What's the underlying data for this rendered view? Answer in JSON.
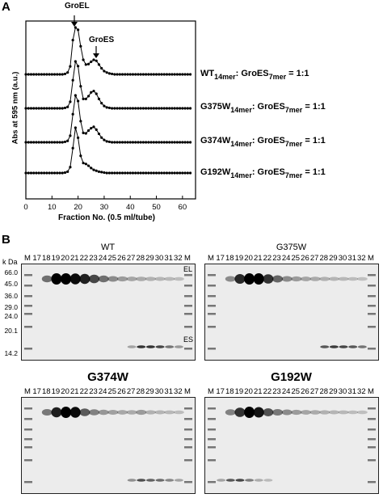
{
  "panel_a": {
    "label": "A",
    "annotations": {
      "groel": "GroEL",
      "groes": "GroES"
    },
    "traces": [
      {
        "pre": "WT",
        "sub1": "14mer",
        "mid": ": GroES",
        "sub2": "7mer",
        "ratio": "= 1:1"
      },
      {
        "pre": "G375W",
        "sub1": "14mer",
        "mid": ": GroES",
        "sub2": "7mer",
        "ratio": "= 1:1"
      },
      {
        "pre": "G374W",
        "sub1": "14mer",
        "mid": ": GroES",
        "sub2": "7mer",
        "ratio": "= 1:1"
      },
      {
        "pre": "G192W",
        "sub1": "14mer",
        "mid": ": GroES",
        "sub2": "7mer",
        "ratio": "= 1:1"
      }
    ]
  },
  "chart_data": {
    "type": "line",
    "title": "",
    "xlabel": "Fraction No. (0.5 ml/tube)",
    "ylabel": "Abs at 595 nm (a.u.)",
    "xlim": [
      0,
      65
    ],
    "xticks": [
      "0",
      "10",
      "20",
      "30",
      "40",
      "50",
      "60"
    ],
    "x": [
      0,
      1,
      2,
      3,
      4,
      5,
      6,
      7,
      8,
      9,
      10,
      11,
      12,
      13,
      14,
      15,
      16,
      17,
      18,
      19,
      20,
      21,
      22,
      23,
      24,
      25,
      26,
      27,
      28,
      29,
      30,
      31,
      32,
      33,
      34,
      35,
      36,
      37,
      38,
      39,
      40,
      41,
      42,
      43,
      44,
      45,
      46,
      47,
      48,
      49,
      50,
      51,
      52,
      53,
      54,
      55,
      56,
      57,
      58,
      59,
      60,
      61,
      62,
      63
    ],
    "series": [
      {
        "name": "WT",
        "values": [
          0,
          0,
          0,
          0,
          0,
          0,
          0,
          0,
          0,
          0,
          0,
          0,
          0,
          0,
          0,
          0.01,
          0.04,
          0.17,
          0.73,
          1,
          0.95,
          0.6,
          0.31,
          0.21,
          0.22,
          0.27,
          0.31,
          0.29,
          0.21,
          0.13,
          0.07,
          0.04,
          0.02,
          0.01,
          0,
          0,
          0,
          0,
          0,
          0,
          0,
          0,
          0,
          0,
          0,
          0,
          0,
          0,
          0,
          0,
          0,
          0,
          0,
          0,
          0,
          0,
          0,
          0,
          0,
          0,
          0,
          0,
          0,
          0
        ]
      },
      {
        "name": "G375W",
        "values": [
          0,
          0,
          0,
          0,
          0,
          0,
          0,
          0,
          0,
          0,
          0,
          0,
          0,
          0,
          0,
          0.01,
          0.03,
          0.14,
          0.6,
          1,
          0.9,
          0.47,
          0.2,
          0.2,
          0.26,
          0.34,
          0.37,
          0.31,
          0.2,
          0.11,
          0.05,
          0.02,
          0.01,
          0,
          0,
          0,
          0,
          0,
          0,
          0,
          0,
          0,
          0,
          0,
          0,
          0,
          0,
          0,
          0,
          0,
          0,
          0,
          0,
          0,
          0,
          0,
          0,
          0,
          0,
          0,
          0,
          0,
          0,
          0
        ]
      },
      {
        "name": "G374W",
        "values": [
          0,
          0,
          0,
          0,
          0,
          0,
          0,
          0,
          0,
          0,
          0,
          0,
          0,
          0,
          0,
          0.01,
          0.03,
          0.14,
          0.6,
          1,
          0.88,
          0.45,
          0.2,
          0.19,
          0.25,
          0.3,
          0.33,
          0.27,
          0.18,
          0.1,
          0.05,
          0.02,
          0.01,
          0,
          0,
          0,
          0,
          0,
          0,
          0,
          0,
          0,
          0,
          0,
          0,
          0,
          0,
          0,
          0,
          0,
          0,
          0,
          0,
          0,
          0,
          0,
          0,
          0,
          0,
          0,
          0,
          0,
          0,
          0
        ]
      },
      {
        "name": "G192W",
        "values": [
          0,
          0,
          0,
          0,
          0,
          0,
          0,
          0,
          0,
          0,
          0,
          0,
          0,
          0,
          0,
          0.01,
          0.03,
          0.13,
          0.55,
          1,
          0.78,
          0.38,
          0.22,
          0.2,
          0.16,
          0.11,
          0.07,
          0.05,
          0.03,
          0.02,
          0.01,
          0,
          0,
          0,
          0,
          0,
          0,
          0,
          0,
          0,
          0,
          0,
          0,
          0,
          0,
          0,
          0,
          0,
          0,
          0,
          0,
          0,
          0,
          0,
          0,
          0,
          0,
          0,
          0,
          0,
          0,
          0,
          0,
          0
        ]
      }
    ]
  },
  "panel_b": {
    "label": "B",
    "units": "k Da",
    "markers": [
      "66.0",
      "45.0",
      "36.0",
      "29.0",
      "24.0",
      "20.1",
      "14.2"
    ],
    "lanes": [
      "M",
      "17",
      "18",
      "19",
      "20",
      "21",
      "22",
      "23",
      "24",
      "25",
      "26",
      "27",
      "28",
      "29",
      "30",
      "31",
      "32",
      "M"
    ],
    "band_labels": {
      "el": "EL",
      "es": "ES"
    },
    "gels": [
      {
        "title": "WT",
        "el": [
          0,
          0,
          0.45,
          1,
          1,
          0.95,
          0.85,
          0.65,
          0.45,
          0.3,
          0.22,
          0.18,
          0.15,
          0.12,
          0.1,
          0.08,
          0.06,
          0
        ],
        "es": [
          0,
          0,
          0,
          0,
          0,
          0,
          0,
          0,
          0,
          0,
          0,
          0.2,
          0.8,
          0.8,
          0.7,
          0.45,
          0.25,
          0
        ]
      },
      {
        "title": "G375W",
        "el": [
          0,
          0,
          0.3,
          0.8,
          1,
          1,
          0.75,
          0.5,
          0.3,
          0.22,
          0.18,
          0.15,
          0.12,
          0.1,
          0.08,
          0.06,
          0.05,
          0
        ],
        "es": [
          0,
          0,
          0,
          0,
          0,
          0,
          0,
          0,
          0,
          0,
          0,
          0,
          0.6,
          0.75,
          0.7,
          0.6,
          0.45,
          0
        ]
      },
      {
        "title": "G374W",
        "el": [
          0,
          0,
          0.4,
          0.85,
          1,
          0.95,
          0.55,
          0.35,
          0.25,
          0.2,
          0.17,
          0.15,
          0.22,
          0.12,
          0.1,
          0.08,
          0.06,
          0
        ],
        "es": [
          0,
          0,
          0,
          0,
          0,
          0,
          0,
          0,
          0,
          0,
          0,
          0.3,
          0.65,
          0.55,
          0.5,
          0.35,
          0.2,
          0
        ]
      },
      {
        "title": "G192W",
        "el": [
          0,
          0,
          0.35,
          0.75,
          1,
          0.9,
          0.6,
          0.4,
          0.3,
          0.22,
          0.18,
          0.15,
          0.12,
          0.1,
          0.08,
          0.06,
          0.05,
          0
        ],
        "es": [
          0,
          0.2,
          0.6,
          0.7,
          0.4,
          0.15,
          0.08,
          0,
          0,
          0,
          0,
          0,
          0,
          0,
          0,
          0,
          0,
          0
        ]
      }
    ]
  }
}
